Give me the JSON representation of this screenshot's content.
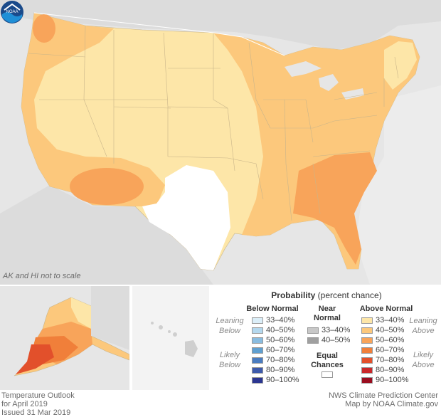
{
  "map": {
    "scale_note": "AK and HI not to scale",
    "logo_text": "NOAA"
  },
  "legend": {
    "title_bold": "Probability",
    "title_rest": " (percent chance)",
    "below_normal_heading": "Below Normal",
    "near_normal_heading_1": "Near",
    "near_normal_heading_2": "Normal",
    "above_normal_heading": "Above Normal",
    "leaning_below_1": "Leaning",
    "leaning_below_2": "Below",
    "likely_below_1": "Likely",
    "likely_below_2": "Below",
    "leaning_above_1": "Leaning",
    "leaning_above_2": "Above",
    "likely_above_1": "Likely",
    "likely_above_2": "Above",
    "equal_chances_1": "Equal",
    "equal_chances_2": "Chances",
    "below_normal": [
      {
        "label": "33–40%",
        "color": "#dbeef8"
      },
      {
        "label": "40–50%",
        "color": "#b4d8ee"
      },
      {
        "label": "50–60%",
        "color": "#89bce0"
      },
      {
        "label": "60–70%",
        "color": "#5f9fd0"
      },
      {
        "label": "70–80%",
        "color": "#4a7cc0"
      },
      {
        "label": "80–90%",
        "color": "#3d5aab"
      },
      {
        "label": "90–100%",
        "color": "#2b3691"
      }
    ],
    "near_normal": [
      {
        "label": "33–40%",
        "color": "#c8c8c8"
      },
      {
        "label": "40–50%",
        "color": "#a0a0a0"
      }
    ],
    "above_normal": [
      {
        "label": "33–40%",
        "color": "#fde6a8"
      },
      {
        "label": "40–50%",
        "color": "#fcc87c"
      },
      {
        "label": "50–60%",
        "color": "#f8a45a"
      },
      {
        "label": "60–70%",
        "color": "#f07f3a"
      },
      {
        "label": "70–80%",
        "color": "#e2502b"
      },
      {
        "label": "80–90%",
        "color": "#c9282a"
      },
      {
        "label": "90–100%",
        "color": "#9a0d1f"
      }
    ],
    "equal_chances_color": "#ffffff"
  },
  "footer": {
    "left_line1": "Temperature Outlook",
    "left_line2": "for April 2019",
    "left_line3": "Issued 31 Mar 2019",
    "right_line1": "NWS Climate Prediction Center",
    "right_line2": "Map by NOAA Climate.gov"
  }
}
